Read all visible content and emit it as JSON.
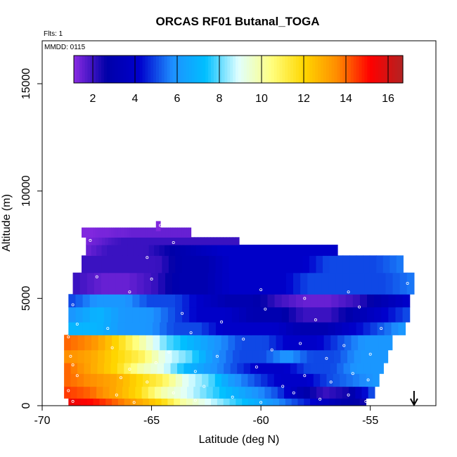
{
  "chart_data": {
    "type": "heatmap",
    "title": "ORCAS RF01 Butanal_TOGA",
    "annotations": [
      "Flts: 1",
      "MMDD: 0115"
    ],
    "xlabel": "Latitude (deg N)",
    "ylabel": "Altitude (m)",
    "xlim": [
      -70,
      -52
    ],
    "ylim": [
      0,
      17000
    ],
    "x_ticks": [
      -70,
      -65,
      -60,
      -55
    ],
    "x_tick_labels": [
      "-70",
      "-65",
      "-60",
      "-55"
    ],
    "y_ticks": [
      0,
      5000,
      10000,
      15000
    ],
    "y_tick_labels": [
      "0",
      "5000",
      "10000",
      "15000"
    ],
    "colorbar": {
      "range": [
        1.1,
        16.7
      ],
      "ticks": [
        2,
        4,
        6,
        8,
        10,
        12,
        14,
        16
      ],
      "tick_labels": [
        "2",
        "4",
        "6",
        "8",
        "10",
        "12",
        "14",
        "16"
      ],
      "colors": [
        "#8a2be2",
        "#0000a8",
        "#0000cd",
        "#1e90ff",
        "#00bfff",
        "#e0ffff",
        "#ffff80",
        "#ffd700",
        "#ff8c00",
        "#ff0000",
        "#b22222"
      ]
    },
    "altitude_bands": [
      {
        "alt": [
          0,
          350
        ],
        "lat": [
          -68.8,
          -55.2
        ],
        "values": [
          15.5,
          15,
          14,
          13,
          12,
          10,
          9,
          8,
          7,
          6,
          5,
          4,
          3,
          2.5
        ]
      },
      {
        "alt": [
          350,
          900
        ],
        "lat": [
          -69.0,
          -54.8
        ],
        "values": [
          14.5,
          14,
          13,
          12,
          10,
          9,
          8,
          7,
          6,
          5,
          3,
          2,
          2.5,
          5
        ]
      },
      {
        "alt": [
          900,
          1500
        ],
        "lat": [
          -69.0,
          -54.6
        ],
        "values": [
          14,
          13.5,
          13,
          12,
          11,
          9,
          8,
          6,
          5,
          4,
          4,
          5,
          5.5,
          6
        ]
      },
      {
        "alt": [
          1500,
          2000
        ],
        "lat": [
          -69.0,
          -54.4
        ],
        "values": [
          14,
          13,
          12,
          10,
          9,
          7,
          6,
          5,
          4,
          4,
          5,
          5,
          6,
          6
        ]
      },
      {
        "alt": [
          2000,
          2600
        ],
        "lat": [
          -69.0,
          -54.2
        ],
        "values": [
          13.5,
          13,
          12,
          11,
          9,
          8,
          6,
          5,
          5,
          6,
          5,
          5,
          6,
          6
        ]
      },
      {
        "alt": [
          2600,
          3300
        ],
        "lat": [
          -69.0,
          -54.0
        ],
        "values": [
          14,
          13.5,
          12,
          10,
          8,
          7,
          6,
          5,
          5,
          4,
          4,
          5,
          6,
          6
        ]
      },
      {
        "alt": [
          3300,
          3900
        ],
        "lat": [
          -68.8,
          -53.4
        ],
        "values": [
          7,
          7,
          6,
          6,
          5,
          5,
          4,
          4,
          4,
          3,
          3,
          4,
          5,
          6
        ]
      },
      {
        "alt": [
          3900,
          4600
        ],
        "lat": [
          -68.8,
          -53.2
        ],
        "values": [
          6,
          7,
          6,
          6,
          5,
          4,
          4,
          3,
          3,
          2,
          2,
          3,
          4,
          5
        ]
      },
      {
        "alt": [
          4600,
          5200
        ],
        "lat": [
          -68.8,
          -53.2
        ],
        "values": [
          5,
          6,
          6,
          5,
          5,
          4,
          3,
          3,
          2,
          1.5,
          1.5,
          2,
          3,
          4
        ]
      },
      {
        "alt": [
          5200,
          6200
        ],
        "lat": [
          -68.6,
          -53.0
        ],
        "values": [
          2,
          1.5,
          1.5,
          2,
          3,
          3,
          4,
          4,
          4,
          5,
          5,
          5,
          5,
          5.5
        ]
      },
      {
        "alt": [
          6200,
          7000
        ],
        "lat": [
          -68.2,
          -53.5
        ],
        "values": [
          2,
          2,
          2,
          2,
          3,
          3,
          4,
          4,
          4,
          4,
          5,
          5,
          5,
          5.5
        ]
      },
      {
        "alt": [
          7000,
          7500
        ],
        "lat": [
          -68.0,
          -56.5
        ],
        "values": [
          1.5,
          2,
          2,
          2,
          2.5,
          3,
          3.5,
          4,
          4,
          4,
          4,
          4,
          4,
          4
        ]
      },
      {
        "alt": [
          7500,
          7850
        ],
        "lat": [
          -68.0,
          -61.0
        ],
        "values": [
          1.3,
          1.5,
          1.8,
          2,
          2,
          2,
          2,
          2,
          2,
          2,
          2,
          2,
          2,
          2
        ]
      },
      {
        "alt": [
          7850,
          8300
        ],
        "lat": [
          -68.2,
          -63.2
        ],
        "values": [
          1.2,
          1.2,
          1.3,
          1.3,
          1.4,
          1.4,
          1.5,
          1.5,
          1.5,
          1.5,
          1.5,
          1.5,
          1.5,
          1.5
        ]
      },
      {
        "alt": [
          8150,
          8600
        ],
        "lat": [
          -64.8,
          -64.6
        ],
        "values": [
          1.2
        ]
      }
    ],
    "flight_samples": [
      {
        "lat": -64.6,
        "alt": 8400
      },
      {
        "lat": -67.8,
        "alt": 7700
      },
      {
        "lat": -64.0,
        "alt": 7600
      },
      {
        "lat": -65.2,
        "alt": 6900
      },
      {
        "lat": -67.5,
        "alt": 6000
      },
      {
        "lat": -65.0,
        "alt": 5900
      },
      {
        "lat": -66.0,
        "alt": 5300
      },
      {
        "lat": -60.0,
        "alt": 5400
      },
      {
        "lat": -58.0,
        "alt": 5000
      },
      {
        "lat": -56.0,
        "alt": 5300
      },
      {
        "lat": -53.3,
        "alt": 5700
      },
      {
        "lat": -53.3,
        "alt": 6600
      },
      {
        "lat": -68.6,
        "alt": 4700
      },
      {
        "lat": -63.6,
        "alt": 4300
      },
      {
        "lat": -61.8,
        "alt": 3900
      },
      {
        "lat": -59.8,
        "alt": 4500
      },
      {
        "lat": -57.5,
        "alt": 4000
      },
      {
        "lat": -55.5,
        "alt": 4600
      },
      {
        "lat": -54.5,
        "alt": 3600
      },
      {
        "lat": -68.4,
        "alt": 3800
      },
      {
        "lat": -67.0,
        "alt": 3600
      },
      {
        "lat": -63.2,
        "alt": 3400
      },
      {
        "lat": -60.8,
        "alt": 3100
      },
      {
        "lat": -58.2,
        "alt": 2900
      },
      {
        "lat": -56.2,
        "alt": 2800
      },
      {
        "lat": -68.8,
        "alt": 3200
      },
      {
        "lat": -66.8,
        "alt": 2700
      },
      {
        "lat": -64.2,
        "alt": 2500
      },
      {
        "lat": -62.0,
        "alt": 2300
      },
      {
        "lat": -59.5,
        "alt": 2600
      },
      {
        "lat": -57.0,
        "alt": 2200
      },
      {
        "lat": -55.0,
        "alt": 2400
      },
      {
        "lat": -68.6,
        "alt": 1900
      },
      {
        "lat": -66.0,
        "alt": 1700
      },
      {
        "lat": -63.0,
        "alt": 1600
      },
      {
        "lat": -60.2,
        "alt": 1800
      },
      {
        "lat": -58.0,
        "alt": 1400
      },
      {
        "lat": -55.8,
        "alt": 1500
      },
      {
        "lat": -68.4,
        "alt": 1400
      },
      {
        "lat": -65.2,
        "alt": 1100
      },
      {
        "lat": -62.6,
        "alt": 900
      },
      {
        "lat": -59.0,
        "alt": 900
      },
      {
        "lat": -56.8,
        "alt": 1100
      },
      {
        "lat": -55.1,
        "alt": 1200
      },
      {
        "lat": -68.8,
        "alt": 700
      },
      {
        "lat": -66.6,
        "alt": 500
      },
      {
        "lat": -64.0,
        "alt": 600
      },
      {
        "lat": -61.3,
        "alt": 400
      },
      {
        "lat": -58.5,
        "alt": 600
      },
      {
        "lat": -56.0,
        "alt": 500
      },
      {
        "lat": -68.6,
        "alt": 200
      },
      {
        "lat": -65.8,
        "alt": 150
      },
      {
        "lat": -63.0,
        "alt": 250
      },
      {
        "lat": -60.0,
        "alt": 150
      },
      {
        "lat": -57.3,
        "alt": 300
      },
      {
        "lat": -55.2,
        "alt": 200
      },
      {
        "lat": -68.7,
        "alt": 2300
      },
      {
        "lat": -66.4,
        "alt": 1300
      },
      {
        "lat": -64.8,
        "alt": 2000
      }
    ],
    "arrow_marker": {
      "lat": -53,
      "direction": "down"
    }
  }
}
